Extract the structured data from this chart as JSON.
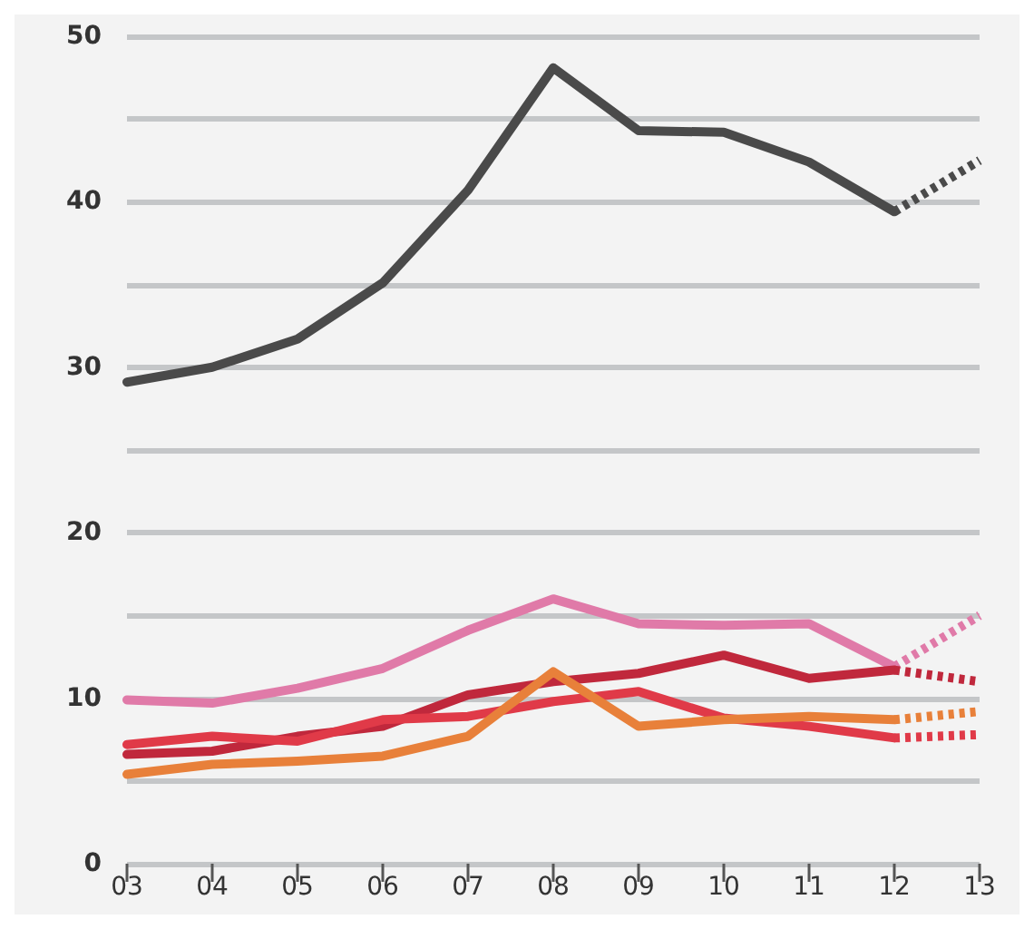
{
  "chart_data": {
    "type": "line",
    "categories": [
      "03",
      "04",
      "05",
      "06",
      "07",
      "08",
      "09",
      "10",
      "11",
      "12",
      "13"
    ],
    "ylim": [
      0,
      50
    ],
    "yticks": [
      0,
      {
        "value": 5,
        "label": null
      },
      10,
      {
        "value": 15,
        "label": null
      },
      20,
      {
        "value": 25,
        "label": null
      },
      30,
      {
        "value": 35,
        "label": null
      },
      40,
      {
        "value": 45,
        "label": null
      },
      50
    ],
    "grid": "y",
    "marker": "none",
    "line_style": "solid",
    "series": [
      {
        "color": "#4a4a4a",
        "values": [
          29.1,
          30.0,
          31.7,
          35.1,
          40.7,
          48.1,
          44.3,
          44.2,
          42.4,
          39.4,
          null
        ]
      },
      {
        "color": "#4a4a4a",
        "line_style": "dotted",
        "values": [
          null,
          null,
          null,
          null,
          null,
          null,
          null,
          null,
          null,
          39.4,
          42.5
        ]
      },
      {
        "color": "#e07aa8",
        "values": [
          9.9,
          9.7,
          10.6,
          11.8,
          14.1,
          16.0,
          14.5,
          14.4,
          14.5,
          11.9,
          null
        ]
      },
      {
        "color": "#e07aa8",
        "line_style": "dotted",
        "values": [
          null,
          null,
          null,
          null,
          null,
          null,
          null,
          null,
          null,
          11.9,
          15.0
        ]
      },
      {
        "color": "#c0283c",
        "values": [
          6.6,
          6.8,
          7.7,
          8.3,
          10.2,
          11.0,
          11.5,
          12.6,
          11.2,
          11.7,
          null
        ]
      },
      {
        "color": "#c0283c",
        "line_style": "dotted",
        "values": [
          null,
          null,
          null,
          null,
          null,
          null,
          null,
          null,
          null,
          11.7,
          11.0
        ]
      },
      {
        "color": "#e03a48",
        "values": [
          7.2,
          7.7,
          7.4,
          8.7,
          8.9,
          9.8,
          10.4,
          8.8,
          8.3,
          7.6,
          null
        ]
      },
      {
        "color": "#e03a48",
        "line_style": "dotted",
        "values": [
          null,
          null,
          null,
          null,
          null,
          null,
          null,
          null,
          null,
          7.6,
          7.8
        ]
      },
      {
        "color": "#e8803a",
        "values": [
          5.4,
          6.0,
          6.2,
          6.5,
          7.7,
          11.6,
          8.3,
          8.7,
          8.9,
          8.7,
          null
        ]
      },
      {
        "color": "#e8803a",
        "line_style": "dotted",
        "values": [
          null,
          null,
          null,
          null,
          null,
          null,
          null,
          null,
          null,
          8.7,
          9.2
        ]
      }
    ]
  }
}
